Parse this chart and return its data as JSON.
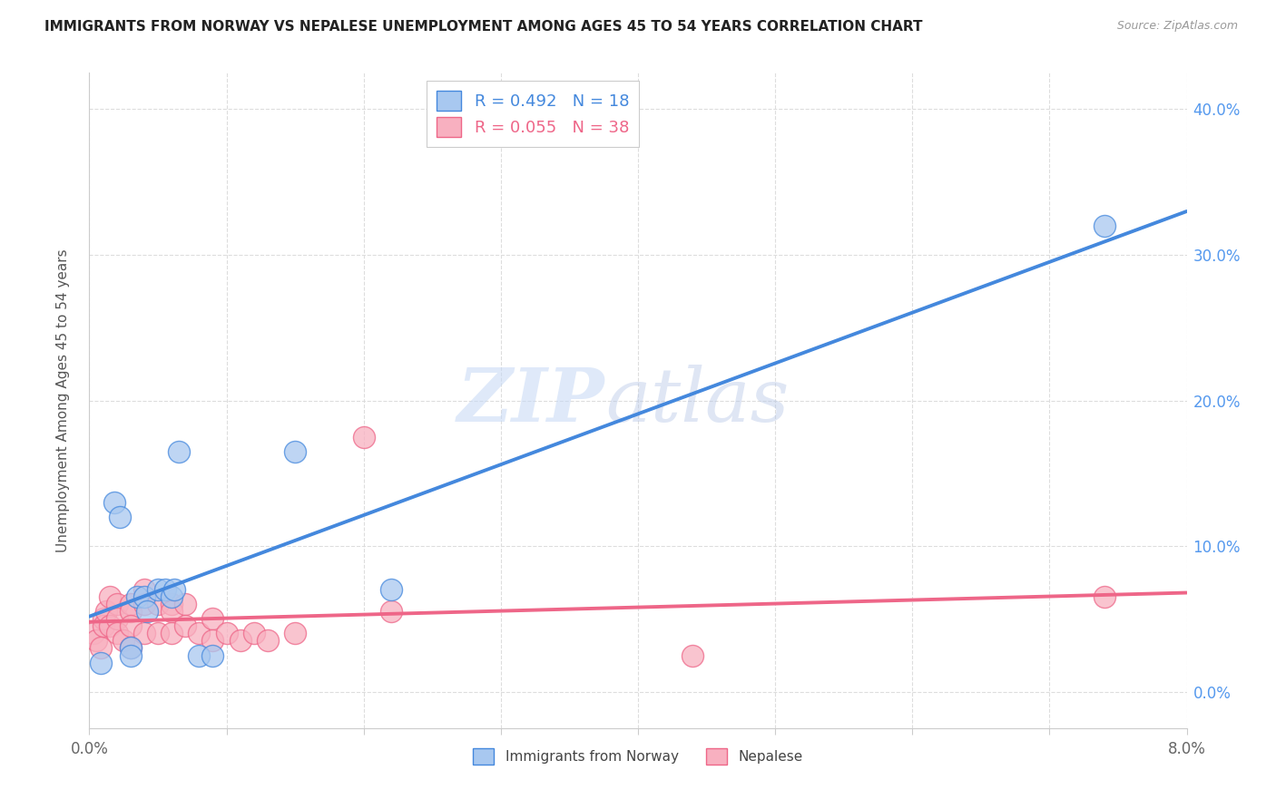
{
  "title": "IMMIGRANTS FROM NORWAY VS NEPALESE UNEMPLOYMENT AMONG AGES 45 TO 54 YEARS CORRELATION CHART",
  "source": "Source: ZipAtlas.com",
  "ylabel": "Unemployment Among Ages 45 to 54 years",
  "xlim": [
    0.0,
    0.08
  ],
  "ylim": [
    -0.025,
    0.425
  ],
  "legend1_R": "0.492",
  "legend1_N": "18",
  "legend2_R": "0.055",
  "legend2_N": "38",
  "legend1_label": "Immigrants from Norway",
  "legend2_label": "Nepalese",
  "color_blue": "#A8C8F0",
  "color_pink": "#F8B0C0",
  "trendline_blue": "#4488DD",
  "trendline_pink": "#EE6688",
  "norway_x": [
    0.0008,
    0.0018,
    0.0022,
    0.003,
    0.003,
    0.0035,
    0.004,
    0.0042,
    0.005,
    0.0055,
    0.006,
    0.0062,
    0.0065,
    0.008,
    0.009,
    0.015,
    0.022,
    0.074
  ],
  "norway_y": [
    0.02,
    0.13,
    0.12,
    0.03,
    0.025,
    0.065,
    0.065,
    0.055,
    0.07,
    0.07,
    0.065,
    0.07,
    0.165,
    0.025,
    0.025,
    0.165,
    0.07,
    0.32
  ],
  "nepalese_x": [
    0.0003,
    0.0005,
    0.0008,
    0.001,
    0.001,
    0.0012,
    0.0015,
    0.0015,
    0.002,
    0.002,
    0.002,
    0.0025,
    0.003,
    0.003,
    0.003,
    0.003,
    0.004,
    0.004,
    0.004,
    0.005,
    0.005,
    0.006,
    0.006,
    0.006,
    0.007,
    0.007,
    0.008,
    0.009,
    0.009,
    0.01,
    0.011,
    0.012,
    0.013,
    0.015,
    0.02,
    0.022,
    0.044,
    0.074
  ],
  "nepalese_y": [
    0.04,
    0.035,
    0.03,
    0.05,
    0.045,
    0.055,
    0.065,
    0.045,
    0.06,
    0.05,
    0.04,
    0.035,
    0.06,
    0.055,
    0.045,
    0.03,
    0.07,
    0.06,
    0.04,
    0.06,
    0.04,
    0.06,
    0.055,
    0.04,
    0.06,
    0.045,
    0.04,
    0.05,
    0.035,
    0.04,
    0.035,
    0.04,
    0.035,
    0.04,
    0.175,
    0.055,
    0.025,
    0.065
  ],
  "ytick_values": [
    0.0,
    0.1,
    0.2,
    0.3,
    0.4
  ],
  "ytick_labels": [
    "0.0%",
    "10.0%",
    "20.0%",
    "30.0%",
    "40.0%"
  ],
  "xtick_values": [
    0.0,
    0.01,
    0.02,
    0.03,
    0.04,
    0.05,
    0.06,
    0.07,
    0.08
  ],
  "grid_color": "#DDDDDD",
  "spine_color": "#CCCCCC"
}
